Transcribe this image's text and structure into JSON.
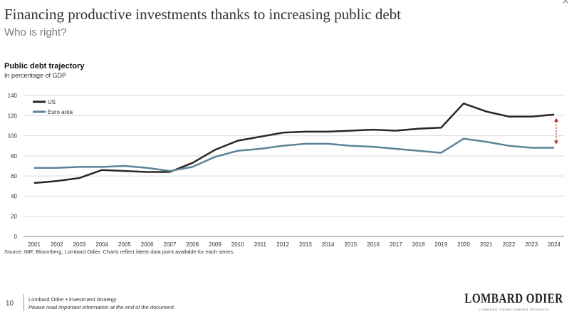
{
  "header": {
    "title": "Financing productive investments thanks to increasing public debt",
    "subtitle": "Who is right?"
  },
  "chart_heading": {
    "title": "Public debt trajectory",
    "subtitle": "In percentage of GDP"
  },
  "chart_data": {
    "type": "line",
    "title": "Public debt trajectory",
    "ylabel": "In percentage of GDP",
    "xlabel": "",
    "categories": [
      "2001",
      "2002",
      "2003",
      "2004",
      "2005",
      "2006",
      "2007",
      "2008",
      "2009",
      "2010",
      "2011",
      "2012",
      "2013",
      "2014",
      "2015",
      "2016",
      "2017",
      "2018",
      "2019",
      "2020",
      "2021",
      "2022",
      "2023",
      "2024"
    ],
    "series": [
      {
        "name": "US",
        "color": "#2b2523",
        "values": [
          53,
          55,
          58,
          66,
          65,
          64,
          64,
          73,
          86,
          95,
          99,
          103,
          104,
          104,
          105,
          106,
          105,
          107,
          108,
          132,
          124,
          119,
          119,
          121
        ]
      },
      {
        "name": "Euro area",
        "color": "#5b8398",
        "values": [
          68,
          68,
          69,
          69,
          70,
          68,
          65,
          69,
          79,
          85,
          87,
          90,
          92,
          92,
          90,
          89,
          87,
          85,
          83,
          97,
          94,
          90,
          88,
          88
        ]
      }
    ],
    "yticks": [
      0,
      20,
      40,
      60,
      80,
      100,
      120,
      140
    ],
    "ylim": [
      0,
      140
    ],
    "grid": true,
    "legend": "top-left",
    "annotation": {
      "type": "double-arrow",
      "category": "2024",
      "from_value": 121,
      "to_value": 88,
      "color": "#b03030"
    }
  },
  "source": "Source: IMF, Bloomberg, Lombard Odier. Charts reflect latest data point available for each series.",
  "footer": {
    "page_number": "10",
    "line1": "Lombard Odier • Investment Strategy",
    "line2": "Please read important information at the end of the document."
  },
  "logo": {
    "name": "LOMBARD ODIER",
    "tagline": "LOMBARD ODIER DARIER HENTSCH"
  },
  "icons": {
    "corner": "close-icon"
  }
}
